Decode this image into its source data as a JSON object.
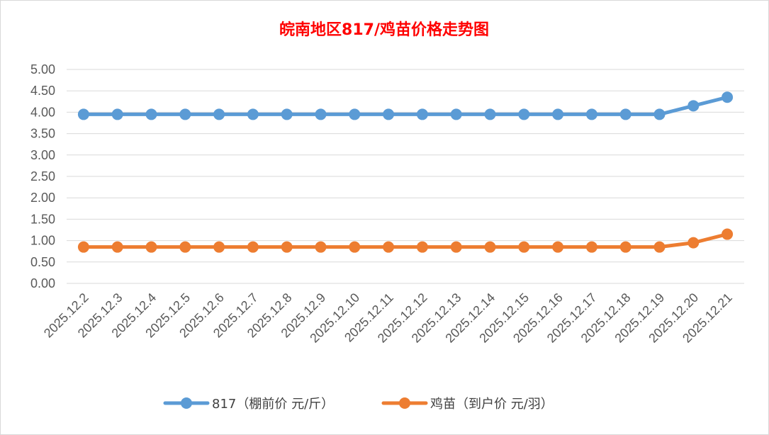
{
  "chart_data": {
    "type": "line",
    "title": "皖南地区817/鸡苗价格走势图",
    "title_color": "#ff0000",
    "categories": [
      "2025.12.2",
      "2025.12.3",
      "2025.12.4",
      "2025.12.5",
      "2025.12.6",
      "2025.12.7",
      "2025.12.8",
      "2025.12.9",
      "2025.12.10",
      "2025.12.11",
      "2025.12.12",
      "2025.12.13",
      "2025.12.14",
      "2025.12.15",
      "2025.12.16",
      "2025.12.17",
      "2025.12.18",
      "2025.12.19",
      "2025.12.20",
      "2025.12.21"
    ],
    "series": [
      {
        "name": "817（棚前价 元/斤）",
        "color": "#5b9bd5",
        "values": [
          3.95,
          3.95,
          3.95,
          3.95,
          3.95,
          3.95,
          3.95,
          3.95,
          3.95,
          3.95,
          3.95,
          3.95,
          3.95,
          3.95,
          3.95,
          3.95,
          3.95,
          3.95,
          4.15,
          4.35
        ]
      },
      {
        "name": "鸡苗（到户价 元/羽）",
        "color": "#ed7d31",
        "values": [
          0.85,
          0.85,
          0.85,
          0.85,
          0.85,
          0.85,
          0.85,
          0.85,
          0.85,
          0.85,
          0.85,
          0.85,
          0.85,
          0.85,
          0.85,
          0.85,
          0.85,
          0.85,
          0.95,
          1.15
        ]
      }
    ],
    "y_ticks": [
      "0.00",
      "0.50",
      "1.00",
      "1.50",
      "2.00",
      "2.50",
      "3.00",
      "3.50",
      "4.00",
      "4.50",
      "5.00"
    ],
    "ylim": [
      0,
      5
    ],
    "grid": true,
    "legend_position": "bottom"
  }
}
